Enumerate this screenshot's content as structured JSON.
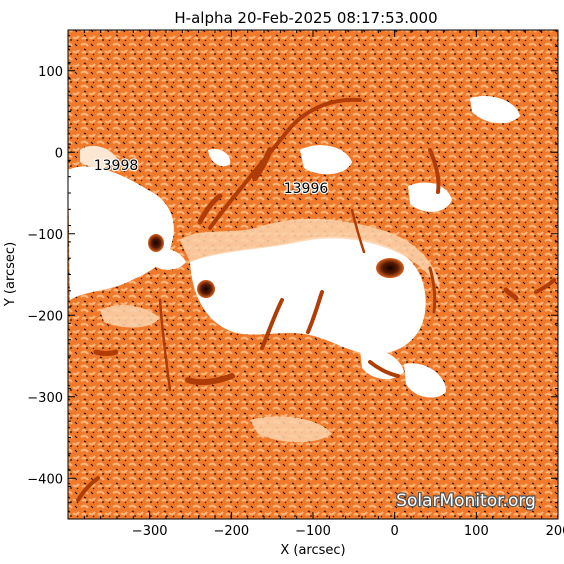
{
  "title": "H-alpha 20-Feb-2025 08:17:53.000",
  "x_axis": {
    "label": "X (arcsec)",
    "range": [
      -400,
      200
    ],
    "ticks": [
      -300,
      -200,
      -100,
      0,
      100,
      200
    ],
    "tick_labels": [
      "−300",
      "−200",
      "−100",
      "0",
      "100",
      "200"
    ]
  },
  "y_axis": {
    "label": "Y (arcsec)",
    "range": [
      -450,
      150
    ],
    "ticks": [
      100,
      0,
      -100,
      -200,
      -300,
      -400
    ],
    "tick_labels": [
      "100",
      "0",
      "−100",
      "−200",
      "−300",
      "−400"
    ]
  },
  "regions": [
    {
      "label": "13998",
      "x": -350,
      "y": -16
    },
    {
      "label": "13996",
      "x": -105,
      "y": -45
    }
  ],
  "watermark": "SolarMonitor.org",
  "colors": {
    "background": "#f07a2a",
    "mottle_light": "#f9b47a",
    "mottle_dark": "#c84f10",
    "plage": "#ffffff",
    "filament": "#b03c08",
    "sunspot_core": "#1a0500"
  }
}
